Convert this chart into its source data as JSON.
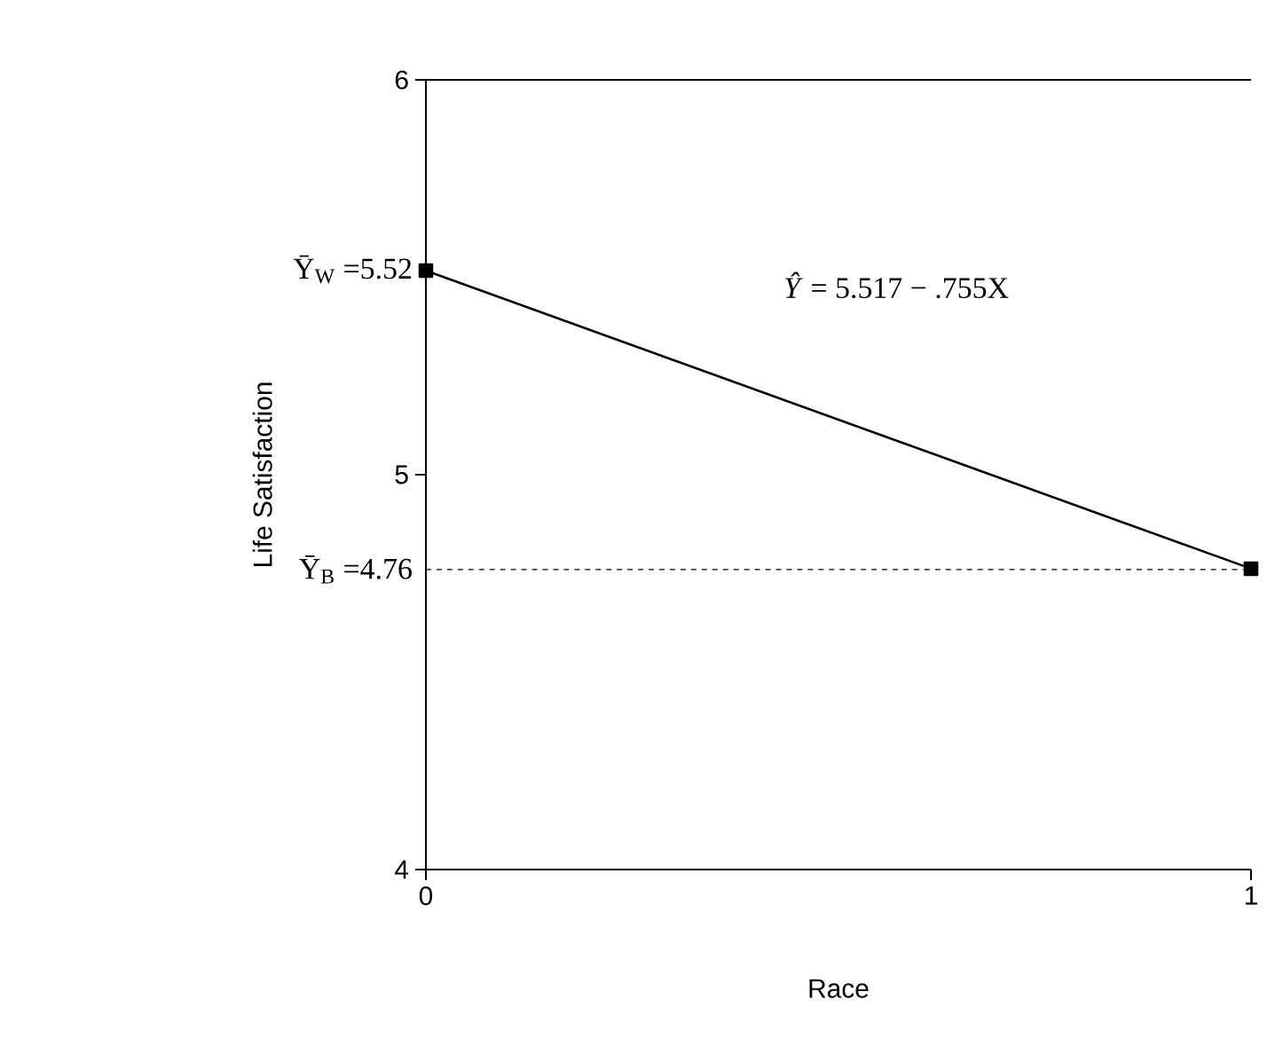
{
  "chart_data": {
    "type": "line",
    "xlabel": "Race",
    "ylabel": "Life Satisfaction",
    "x": [
      0,
      1
    ],
    "series": [
      {
        "color": "#000000",
        "values": [
          5.517,
          4.762
        ]
      }
    ],
    "xlim": [
      0,
      1
    ],
    "xticks": [
      0,
      1
    ],
    "ylim": [
      4,
      6
    ],
    "yticks": [
      4,
      5,
      6
    ],
    "marker": "square",
    "line_style": "solid",
    "grid": false,
    "ref_lines": [
      {
        "axis": "y",
        "value": 4.76,
        "line_style": "dashed",
        "color": "#000000"
      }
    ],
    "annotations": [
      {
        "text": "Ȳ$_{W}$ =5.52",
        "x": 0,
        "y": 5.52
      },
      {
        "text": "Ȳ$_{B}$ =4.76",
        "x": 0,
        "y": 4.76
      },
      "*Ŷ* = 5.517 − .755X"
    ]
  }
}
